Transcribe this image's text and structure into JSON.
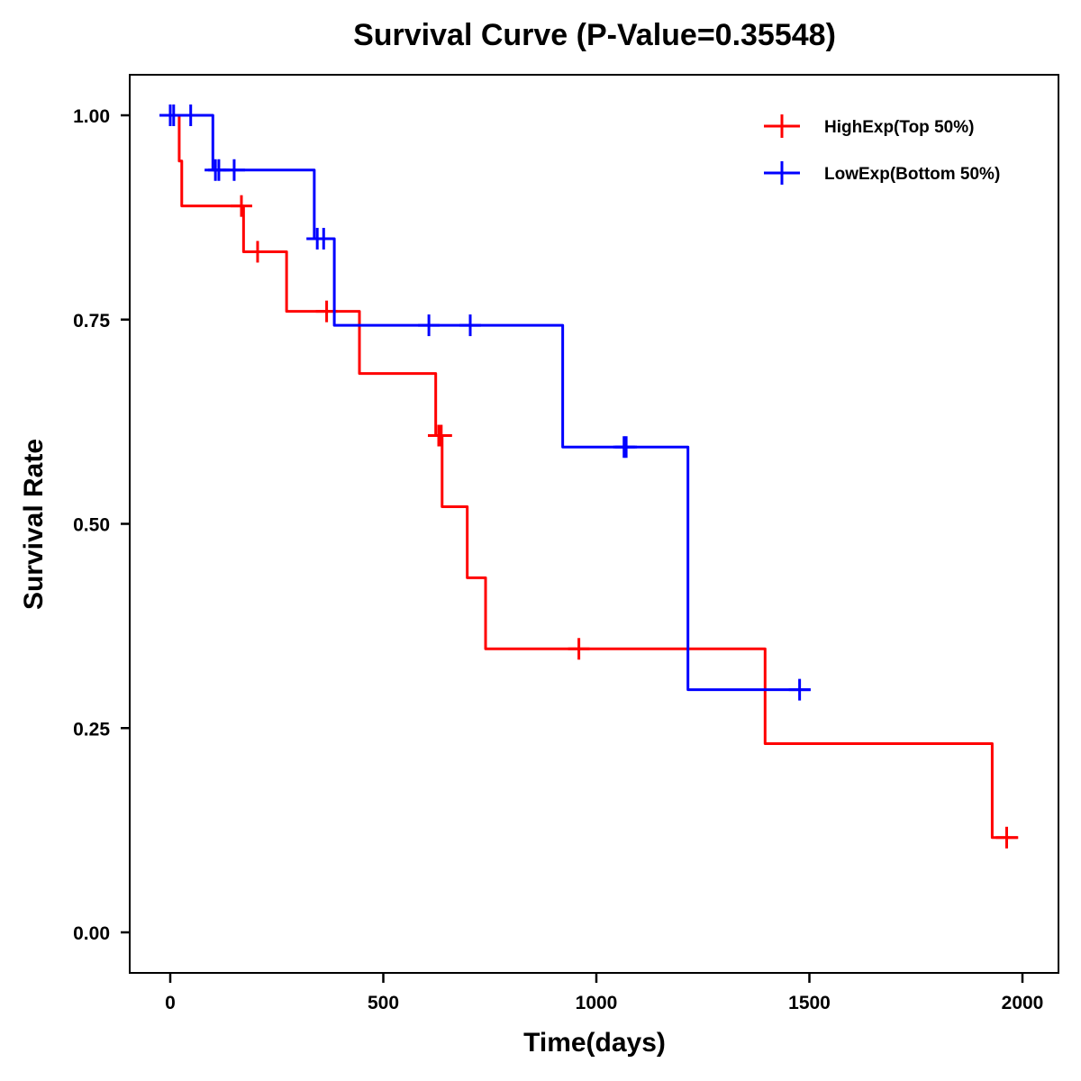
{
  "chart_data": {
    "type": "line",
    "subtype": "kaplan-meier step",
    "title": "Survival Curve (P-Value=0.35548)",
    "xlabel": "Time(days)",
    "ylabel": "Survival Rate",
    "xlim": [
      -90,
      2090
    ],
    "ylim": [
      -0.05,
      1.05
    ],
    "xticks": [
      0,
      500,
      1000,
      1500,
      2000
    ],
    "xtick_labels": [
      "0",
      "500",
      "1000",
      "1500",
      "2000"
    ],
    "yticks": [
      0,
      0.25,
      0.5,
      0.75,
      1.0
    ],
    "ytick_labels": [
      "0.00",
      "0.25",
      "0.50",
      "0.75",
      "1.00"
    ],
    "grid": false,
    "legend": {
      "position": "top-right"
    },
    "series": [
      {
        "name": "HighExp(Top 50%)",
        "color": "#ff0000",
        "steps": [
          {
            "t": 0,
            "s": 1.0
          },
          {
            "t": 21,
            "s": 0.944
          },
          {
            "t": 27,
            "s": 0.889
          },
          {
            "t": 172,
            "s": 0.833
          },
          {
            "t": 273,
            "s": 0.76
          },
          {
            "t": 444,
            "s": 0.684
          },
          {
            "t": 623,
            "s": 0.608
          },
          {
            "t": 638,
            "s": 0.521
          },
          {
            "t": 697,
            "s": 0.434
          },
          {
            "t": 740,
            "s": 0.347
          },
          {
            "t": 1396,
            "s": 0.231
          },
          {
            "t": 1929,
            "s": 0.116
          }
        ],
        "end_t": 1990,
        "censored": [
          {
            "t": 167,
            "s": 0.889
          },
          {
            "t": 205,
            "s": 0.833
          },
          {
            "t": 367,
            "s": 0.76
          },
          {
            "t": 630,
            "s": 0.608
          },
          {
            "t": 636,
            "s": 0.608
          },
          {
            "t": 959,
            "s": 0.347
          },
          {
            "t": 1963,
            "s": 0.116
          }
        ]
      },
      {
        "name": "LowExp(Bottom 50%)",
        "color": "#0000ff",
        "steps": [
          {
            "t": -25,
            "s": 1.0
          },
          {
            "t": 100,
            "s": 0.933
          },
          {
            "t": 338,
            "s": 0.849
          },
          {
            "t": 385,
            "s": 0.743
          },
          {
            "t": 921,
            "s": 0.594
          },
          {
            "t": 1215,
            "s": 0.297
          }
        ],
        "end_t": 1503,
        "censored": [
          {
            "t": 0,
            "s": 1.0
          },
          {
            "t": 8,
            "s": 1.0
          },
          {
            "t": 48,
            "s": 1.0
          },
          {
            "t": 106,
            "s": 0.933
          },
          {
            "t": 114,
            "s": 0.933
          },
          {
            "t": 150,
            "s": 0.933
          },
          {
            "t": 345,
            "s": 0.849
          },
          {
            "t": 360,
            "s": 0.849
          },
          {
            "t": 607,
            "s": 0.743
          },
          {
            "t": 704,
            "s": 0.743
          },
          {
            "t": 1065,
            "s": 0.594
          },
          {
            "t": 1070,
            "s": 0.594
          },
          {
            "t": 1477,
            "s": 0.297
          }
        ]
      }
    ]
  }
}
